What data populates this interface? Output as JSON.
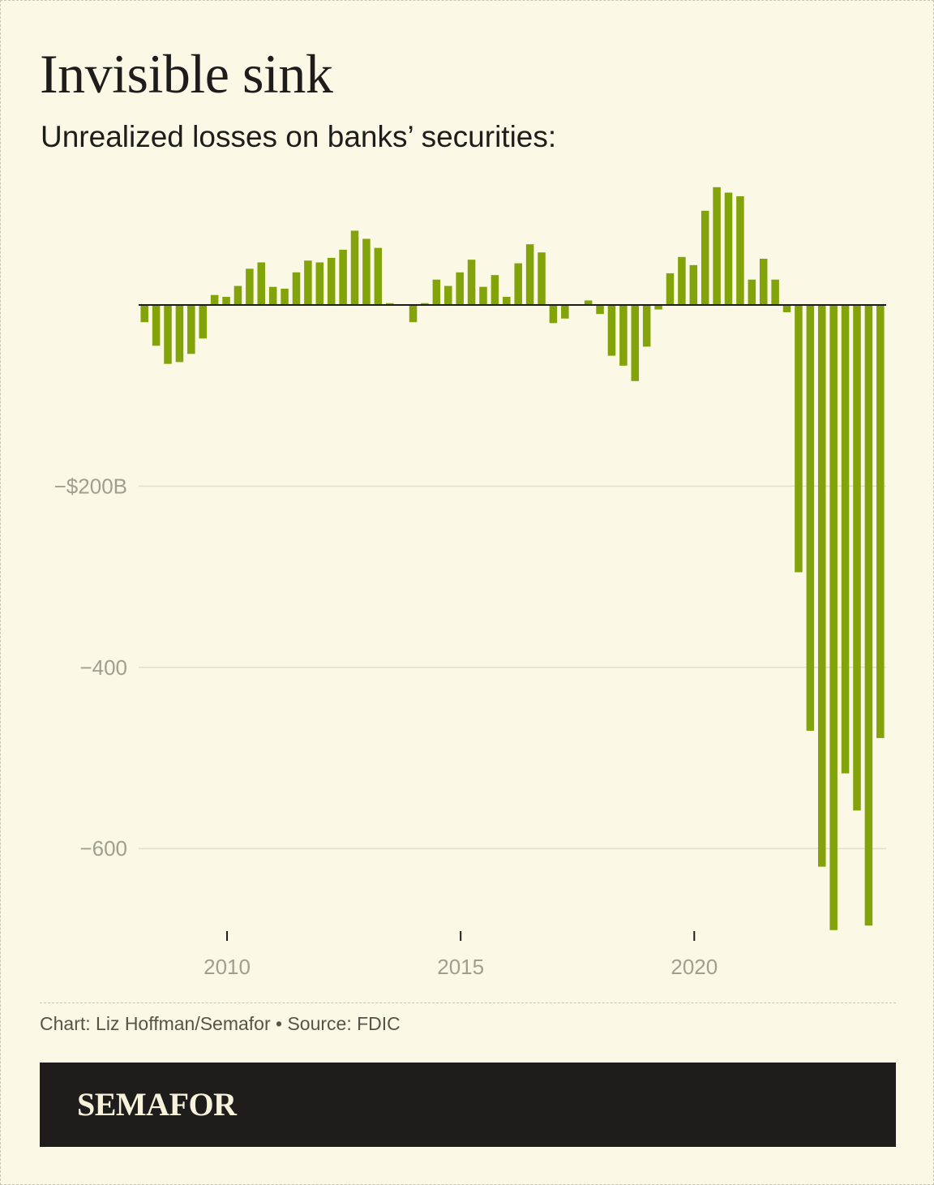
{
  "title": "Invisible sink",
  "subtitle": "Unrealized losses on banks’ securities:",
  "credit": "Chart: Liz Hoffman/Semafor • Source: FDIC",
  "brand": "SEMAFOR",
  "colors": {
    "bar": "#82a30a",
    "background": "#fbf8e6",
    "grid": "#e2dfcb",
    "footer": "#1e1d1b"
  },
  "chart_data": {
    "type": "bar",
    "x_unit": "quarter",
    "x_start": "2008 Q1",
    "ylim": [
      -690,
      130
    ],
    "y_ticks": [
      {
        "value": -200,
        "label": "−$200B"
      },
      {
        "value": -400,
        "label": "−400"
      },
      {
        "value": -600,
        "label": "−600"
      }
    ],
    "x_ticks": [
      {
        "label": "2010"
      },
      {
        "label": "2015"
      },
      {
        "label": "2020"
      }
    ],
    "grid": true,
    "values": [
      -19,
      -45,
      -65,
      -63,
      -54,
      -37,
      11,
      9,
      21,
      40,
      47,
      20,
      18,
      36,
      49,
      47,
      52,
      61,
      82,
      73,
      63,
      2,
      0,
      -19,
      2,
      28,
      21,
      36,
      50,
      20,
      33,
      9,
      46,
      67,
      58,
      -20,
      -15,
      0,
      5,
      -10,
      -56,
      -67,
      -84,
      -46,
      -5,
      35,
      53,
      44,
      104,
      130,
      124,
      120,
      28,
      51,
      28,
      -8,
      -295,
      -470,
      -620,
      -690,
      -517,
      -558,
      -685,
      -478
    ]
  }
}
